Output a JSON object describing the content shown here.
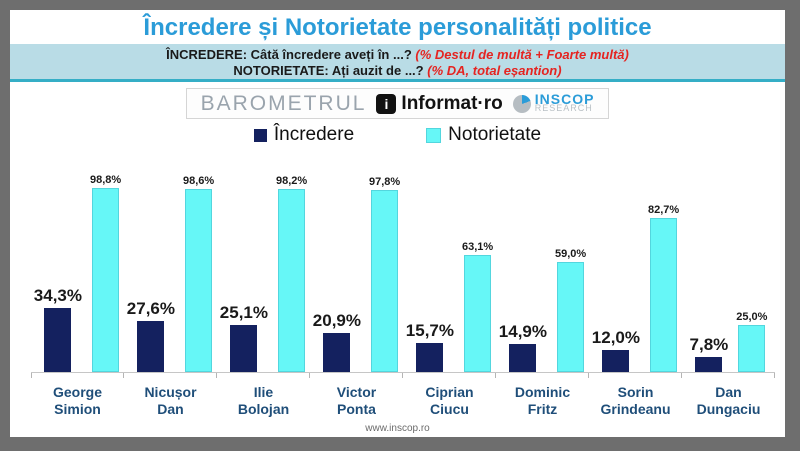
{
  "header": {
    "title": "Încredere și Notorietate personalități politice",
    "line1_label": "ÎNCREDERE: Câtă încredere aveți în ...?",
    "line1_note": "(% Destul de multă + Foarte multă)",
    "line2_label": "NOTORIETATE: Ați auzit de ...?",
    "line2_note": "(% DA, total eșantion)"
  },
  "logo_bar": {
    "barometrul": "BAROMETRUL",
    "informat_icon": "i",
    "informat": "Informat·ro",
    "inscop_top": "INSCOP",
    "inscop_bottom": "RESEARCH"
  },
  "legend": {
    "items": [
      {
        "label": "Încredere",
        "color": "#14215f"
      },
      {
        "label": "Notorietate",
        "color": "#66f7f7"
      }
    ]
  },
  "chart_data": {
    "type": "bar",
    "categories": [
      "George Simion",
      "Nicușor Dan",
      "Ilie Bolojan",
      "Victor Ponta",
      "Ciprian Ciucu",
      "Dominic Fritz",
      "Sorin Grindeanu",
      "Dan Dungaciu"
    ],
    "series": [
      {
        "name": "Încredere",
        "color": "#14215f",
        "values": [
          34.3,
          27.6,
          25.1,
          20.9,
          15.7,
          14.9,
          12.0,
          7.8
        ]
      },
      {
        "name": "Notorietate",
        "color": "#66f7f7",
        "values": [
          98.8,
          98.6,
          98.2,
          97.8,
          63.1,
          59.0,
          82.7,
          25.0
        ]
      }
    ],
    "value_suffix": "%",
    "decimal_separator": ",",
    "ylim": [
      0,
      100
    ],
    "grid": false,
    "legend_position": "top",
    "value_labels": true
  },
  "footer": {
    "url": "www.inscop.ro"
  },
  "colors": {
    "title": "#2b9cd8",
    "band_bg": "#b9dce6",
    "rule": "#35aec6",
    "note_red": "#e52421",
    "category_label": "#1f4e79",
    "navy": "#14215f",
    "cyan": "#66f7f7"
  }
}
